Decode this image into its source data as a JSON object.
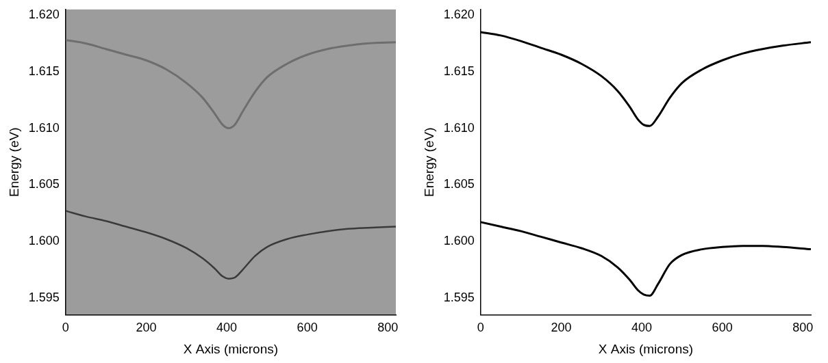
{
  "chart_data": [
    {
      "type": "line",
      "x_label": "X Axis (microns)",
      "y_label": "Energy (eV)",
      "x": [
        0,
        50,
        100,
        150,
        200,
        250,
        300,
        340,
        370,
        390,
        405,
        420,
        440,
        470,
        500,
        550,
        600,
        650,
        700,
        750,
        820
      ],
      "series": [
        {
          "color": "#3a3a3a",
          "values": [
            1.6027,
            1.6022,
            1.6018,
            1.6013,
            1.6008,
            1.6002,
            1.5994,
            1.5985,
            1.5976,
            1.5969,
            1.5967,
            1.5968,
            1.5975,
            1.5987,
            1.5995,
            1.6002,
            1.6006,
            1.6009,
            1.6011,
            1.6012,
            1.6013
          ]
        },
        {
          "color": "#6e6e6e",
          "values": [
            1.6178,
            1.6175,
            1.617,
            1.6165,
            1.616,
            1.6152,
            1.614,
            1.6127,
            1.6113,
            1.6103,
            1.61,
            1.6103,
            1.6115,
            1.6132,
            1.6145,
            1.6157,
            1.6165,
            1.617,
            1.6173,
            1.6175,
            1.6176
          ]
        }
      ],
      "xlim": [
        0,
        820
      ],
      "xticks": [
        0,
        200,
        400,
        600,
        800
      ],
      "ylim": [
        1.5935,
        1.6205
      ],
      "yticks": [
        1.595,
        {
          "value": 1.6,
          "label": "1.600"
        },
        1.605,
        {
          "value": 1.61,
          "label": "1.610"
        },
        1.615,
        {
          "value": 1.62,
          "label": "1.620"
        }
      ],
      "grid": false
    },
    {
      "type": "line",
      "x_label": "X Axis (microns)",
      "y_label": "Energy (eV)",
      "x": [
        0,
        50,
        100,
        150,
        200,
        250,
        300,
        340,
        370,
        390,
        405,
        420,
        440,
        470,
        500,
        550,
        600,
        650,
        700,
        750,
        820
      ],
      "series": [
        {
          "color": "#000000",
          "values": [
            1.6017,
            1.6013,
            1.6009,
            1.6004,
            1.5999,
            1.5994,
            1.5987,
            1.5977,
            1.5966,
            1.5957,
            1.5953,
            1.5952,
            1.5962,
            1.598,
            1.5988,
            1.5993,
            1.5995,
            1.5996,
            1.5996,
            1.5995,
            1.5993
          ]
        },
        {
          "color": "#000000",
          "values": [
            1.6185,
            1.6182,
            1.6177,
            1.6171,
            1.6165,
            1.6157,
            1.6146,
            1.6133,
            1.6119,
            1.6108,
            1.6103,
            1.6102,
            1.611,
            1.6127,
            1.614,
            1.6152,
            1.616,
            1.6166,
            1.617,
            1.6173,
            1.6176
          ]
        }
      ],
      "xlim": [
        0,
        820
      ],
      "xticks": [
        0,
        200,
        400,
        600,
        800
      ],
      "ylim": [
        1.5935,
        1.6205
      ],
      "yticks": [
        1.595,
        {
          "value": 1.6,
          "label": "1.600"
        },
        1.605,
        {
          "value": 1.61,
          "label": "1.610"
        },
        1.615,
        {
          "value": 1.62,
          "label": "1.620"
        }
      ],
      "grid": false
    }
  ]
}
